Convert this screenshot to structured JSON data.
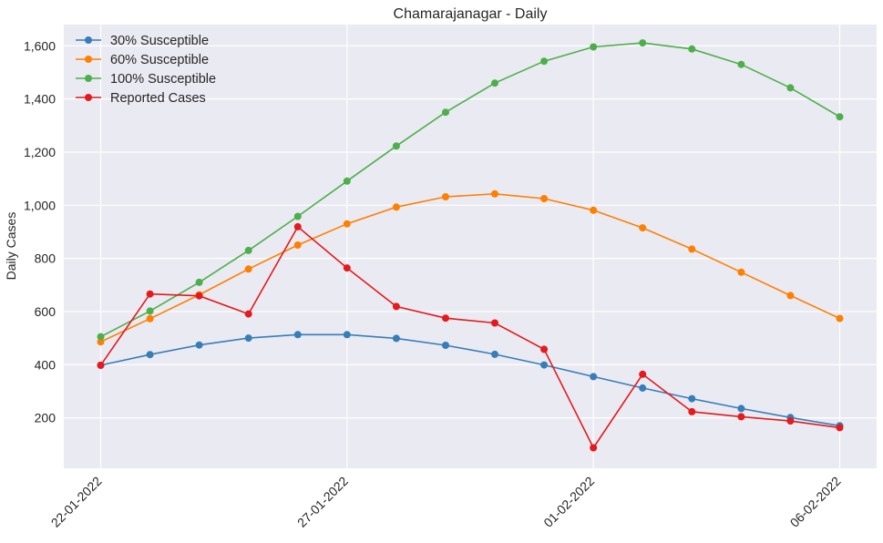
{
  "chart_data": {
    "type": "line",
    "title": "Chamarajanagar - Daily",
    "xlabel": "",
    "ylabel": "Daily Cases",
    "x": [
      "22-01-2022",
      "23-01-2022",
      "24-01-2022",
      "25-01-2022",
      "26-01-2022",
      "27-01-2022",
      "28-01-2022",
      "29-01-2022",
      "30-01-2022",
      "31-01-2022",
      "01-02-2022",
      "02-02-2022",
      "03-02-2022",
      "04-02-2022",
      "05-02-2022",
      "06-02-2022"
    ],
    "x_tick_labels": [
      "22-01-2022",
      "27-01-2022",
      "01-02-2022",
      "06-02-2022"
    ],
    "y_ticks": [
      200,
      400,
      600,
      800,
      1000,
      1200,
      1400,
      1600
    ],
    "y_tick_labels": [
      "200",
      "400",
      "600",
      "800",
      "1,000",
      "1,200",
      "1,400",
      "1,600"
    ],
    "ylim": [
      10,
      1680
    ],
    "grid": true,
    "legend_position": "top-left",
    "series": [
      {
        "name": "30% Susceptible",
        "color": "#377eb8",
        "values": [
          398,
          438,
          474,
          500,
          513,
          513,
          499,
          473,
          439,
          399,
          355,
          312,
          272,
          235,
          201,
          170
        ]
      },
      {
        "name": "60% Susceptible",
        "color": "#ff7f00",
        "values": [
          486,
          573,
          663,
          760,
          850,
          930,
          993,
          1032,
          1043,
          1025,
          981,
          915,
          835,
          748,
          660,
          574
        ]
      },
      {
        "name": "100% Susceptible",
        "color": "#4daf4a",
        "values": [
          505,
          602,
          710,
          830,
          958,
          1091,
          1223,
          1350,
          1460,
          1542,
          1596,
          1611,
          1588,
          1530,
          1442,
          1333
        ]
      },
      {
        "name": "Reported Cases",
        "color": "#e41a1c",
        "values": [
          398,
          666,
          659,
          591,
          919,
          764,
          619,
          575,
          557,
          458,
          87,
          364,
          223,
          204,
          188,
          163
        ]
      }
    ]
  }
}
